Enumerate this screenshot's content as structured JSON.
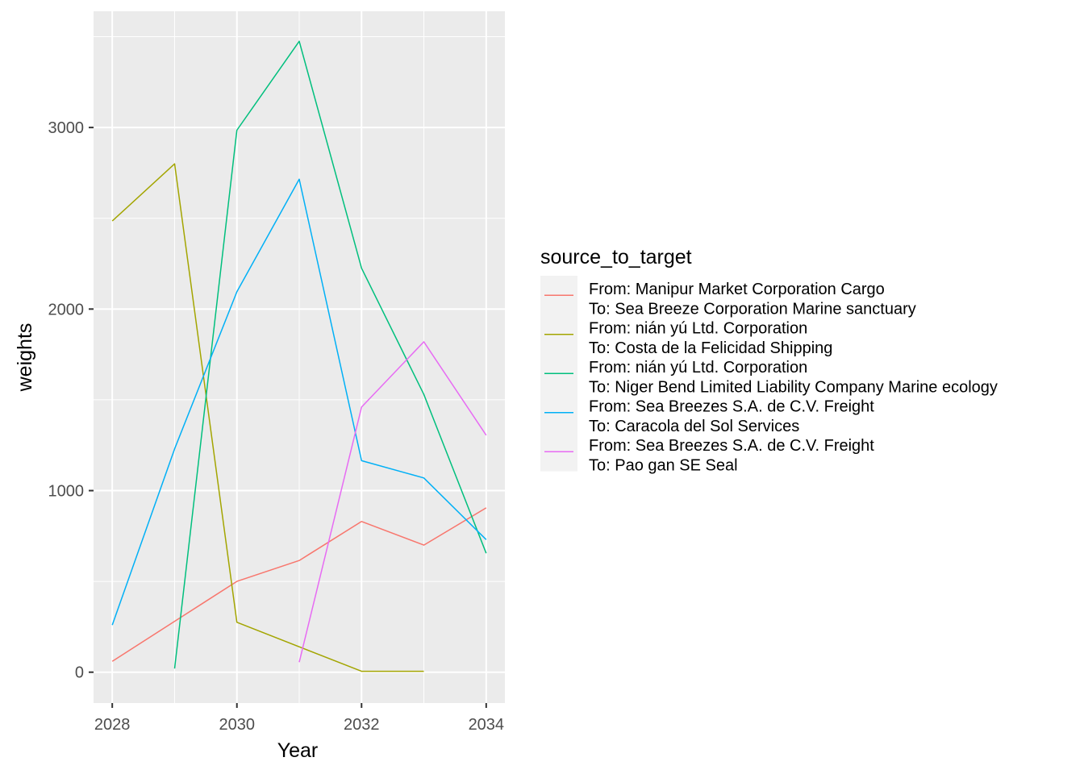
{
  "chart_data": {
    "type": "line",
    "xlabel": "Year",
    "ylabel": "weights",
    "xlim": [
      2027.7,
      2034.3
    ],
    "ylim": [
      -170,
      3640
    ],
    "x_ticks": [
      2028,
      2030,
      2032,
      2034
    ],
    "y_ticks": [
      0,
      1000,
      2000,
      3000
    ],
    "x_tick_labels": [
      "2028",
      "2030",
      "2032",
      "2034"
    ],
    "y_tick_labels": [
      "0",
      "1000",
      "2000",
      "3000"
    ],
    "grid": true,
    "legend": {
      "title": "source_to_target",
      "position": "right"
    },
    "series": [
      {
        "name_lines": [
          "From: Manipur  Market Corporation Cargo",
          "To: Sea Breeze Corporation Marine sanctuary"
        ],
        "color": "#F8766D",
        "points": [
          [
            2028,
            60
          ],
          [
            2030,
            500
          ],
          [
            2031,
            615
          ],
          [
            2032,
            830
          ],
          [
            2033,
            700
          ],
          [
            2034,
            905
          ]
        ]
      },
      {
        "name_lines": [
          "From: nián yú Ltd. Corporation",
          "To: Costa de la Felicidad Shipping"
        ],
        "color": "#A3A500",
        "points": [
          [
            2028,
            2485
          ],
          [
            2029,
            2800
          ],
          [
            2030,
            275
          ],
          [
            2032,
            5
          ],
          [
            2033,
            5
          ]
        ]
      },
      {
        "name_lines": [
          "From: nián yú Ltd. Corporation",
          "To: Niger Bend   Limited Liability Company Marine ecology"
        ],
        "color": "#00BF7D",
        "points": [
          [
            2029,
            20
          ],
          [
            2030,
            2985
          ],
          [
            2031,
            3475
          ],
          [
            2032,
            2225
          ],
          [
            2033,
            1530
          ],
          [
            2034,
            655
          ]
        ]
      },
      {
        "name_lines": [
          "From: Sea Breezes S.A. de C.V. Freight",
          "To: Caracola del Sol Services"
        ],
        "color": "#00B0F6",
        "points": [
          [
            2028,
            260
          ],
          [
            2029,
            1230
          ],
          [
            2030,
            2095
          ],
          [
            2031,
            2715
          ],
          [
            2032,
            1165
          ],
          [
            2033,
            1070
          ],
          [
            2034,
            730
          ]
        ]
      },
      {
        "name_lines": [
          "From: Sea Breezes S.A. de C.V. Freight",
          "To: Pao gan SE Seal"
        ],
        "color": "#E76BF3",
        "points": [
          [
            2031,
            55
          ],
          [
            2032,
            1460
          ],
          [
            2033,
            1820
          ],
          [
            2034,
            1305
          ]
        ]
      }
    ]
  }
}
